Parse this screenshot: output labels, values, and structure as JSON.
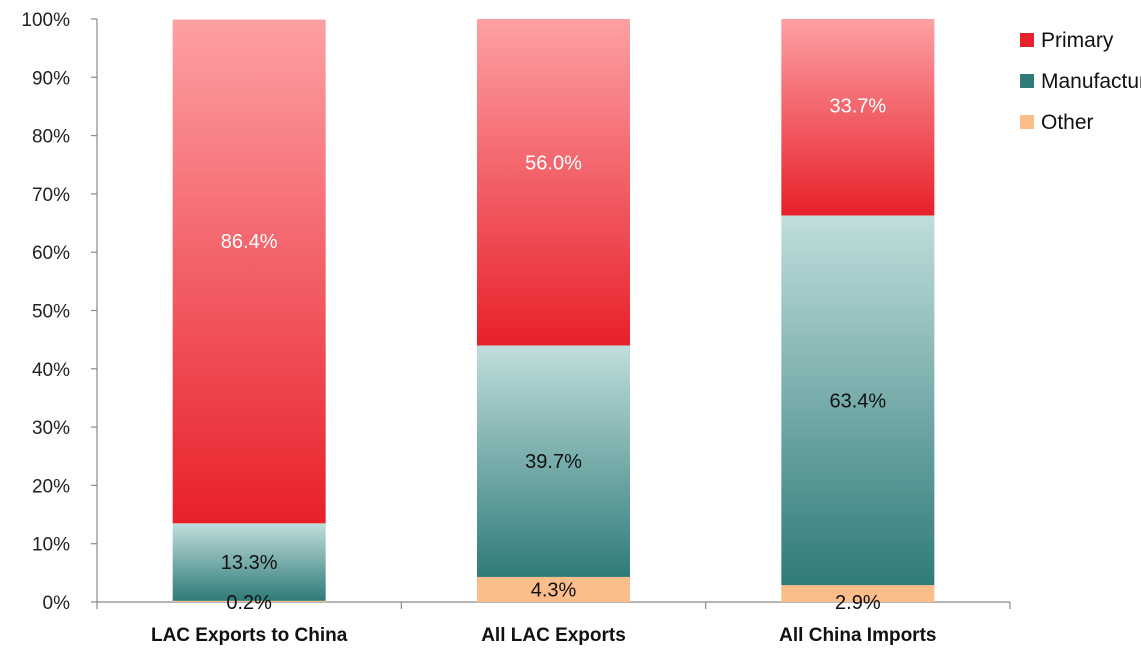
{
  "chart_data": {
    "type": "bar",
    "stacked": true,
    "categories": [
      "LAC Exports to China",
      "All LAC Exports",
      "All China Imports"
    ],
    "series": [
      {
        "name": "Other",
        "values": [
          0.2,
          4.3,
          2.9
        ],
        "labels": [
          "0.2%",
          "4.3%",
          "2.9%"
        ]
      },
      {
        "name": "Manufactured",
        "values": [
          13.3,
          39.7,
          63.4
        ],
        "labels": [
          "13.3%",
          "39.7%",
          "63.4%"
        ]
      },
      {
        "name": "Primary",
        "values": [
          86.4,
          56.0,
          33.7
        ],
        "labels": [
          "86.4%",
          "56.0%",
          "33.7%"
        ]
      }
    ],
    "ylim": [
      0,
      100
    ],
    "yticks": [
      "0%",
      "10%",
      "20%",
      "30%",
      "40%",
      "50%",
      "60%",
      "70%",
      "80%",
      "90%",
      "100%"
    ],
    "legend": {
      "position": "top-right",
      "entries": [
        "Primary",
        "Manufactured",
        "Other"
      ]
    },
    "grid": false,
    "colors": {
      "Primary": [
        "#fda0a4",
        "#e8202a"
      ],
      "Manufactured": [
        "#c0dedd",
        "#2f7b78"
      ],
      "Other": "#fbbd8a",
      "label_on_primary": "#ffffff",
      "label_default": "#111111"
    }
  }
}
